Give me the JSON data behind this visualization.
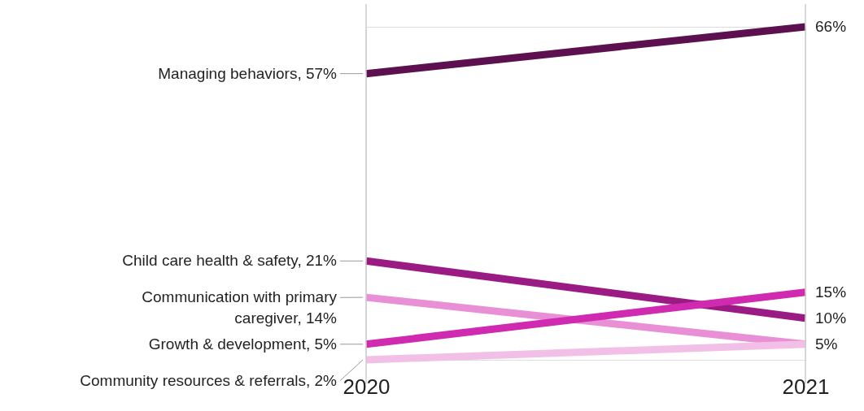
{
  "chart_data": {
    "type": "line",
    "x": [
      2020,
      2021
    ],
    "xlim": [
      2020,
      2021
    ],
    "xticks": [
      2020,
      2021
    ],
    "grid": "x",
    "legend": false,
    "line_style": "solid",
    "marker": "none",
    "series": [
      {
        "color": "#5c1050",
        "values": [
          57,
          66
        ],
        "value_labels": [
          "Managing behaviors, 57%",
          "66%"
        ]
      },
      {
        "color": "#9b1b84",
        "values": [
          21,
          10
        ],
        "value_labels": [
          "Child care health & safety, 21%",
          "10%"
        ]
      },
      {
        "color": "#e88fd6",
        "values": [
          14,
          5
        ],
        "value_labels": [
          "Communication with primary caregiver, 14%",
          "5%"
        ]
      },
      {
        "color": "#d02ab0",
        "values": [
          5,
          15
        ],
        "value_labels": [
          "Growth & development, 5%",
          "15%"
        ]
      },
      {
        "color": "#f2c0e6",
        "values": [
          2,
          5
        ],
        "value_labels": [
          "Community resources & referrals, 2%",
          null
        ]
      }
    ]
  }
}
